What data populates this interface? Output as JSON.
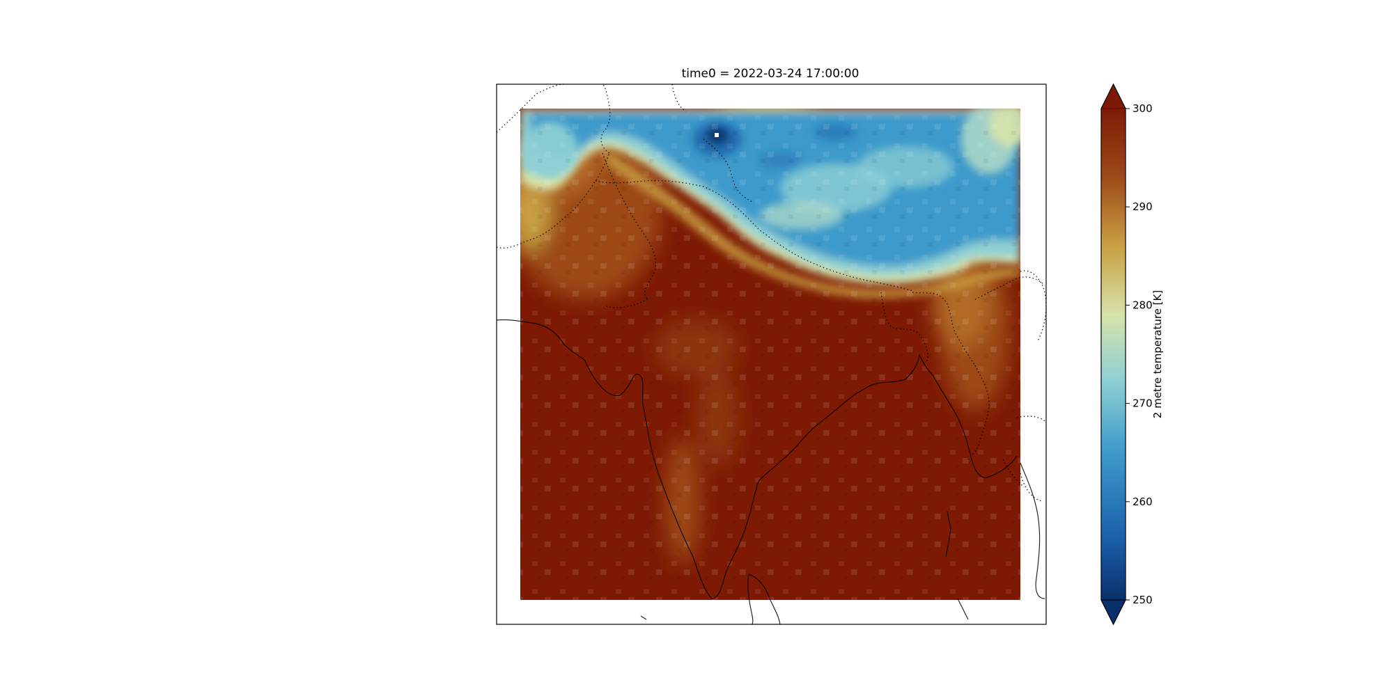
{
  "figure": {
    "title": "time0 = 2022-03-24 17:00:00"
  },
  "colorbar": {
    "label": "2 metre temperature [K]",
    "min": 250,
    "max": 300,
    "ticks": [
      250,
      260,
      270,
      280,
      290,
      300
    ],
    "extend": "both",
    "colormap": [
      "#08306b",
      "#1a5fa8",
      "#3d9acb",
      "#8fd0d4",
      "#d7e3a8",
      "#c9a043",
      "#9c4a18",
      "#7e1a04"
    ]
  },
  "map": {
    "variable": "2 metre temperature",
    "units": "K",
    "region": "South Asia",
    "coastline_color": "#000000",
    "border_style": "dotted",
    "missing_color": "#ffffff"
  }
}
